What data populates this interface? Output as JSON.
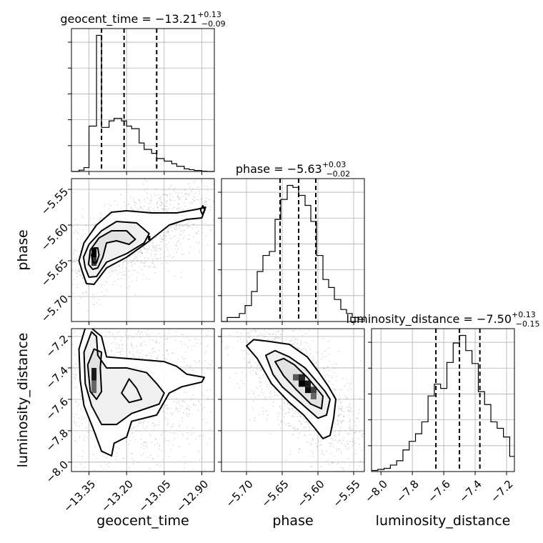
{
  "chart_data": {
    "type": "corner",
    "parameters": [
      {
        "name": "geocent_time",
        "axis_label": "geocent_time",
        "range": [
          -13.42,
          -12.85
        ],
        "ticks": [
          -13.35,
          -13.2,
          -13.05,
          -12.9
        ],
        "tick_labels": [
          "−13.35",
          "−13.20",
          "−13.05",
          "−12.90"
        ],
        "title": {
          "prefix": "geocent_time = ",
          "median": "−13.21",
          "upper": "+0.13",
          "lower": "−0.09"
        },
        "quantiles": [
          -13.3,
          -13.21,
          -13.08
        ],
        "hist_bins": [
          -13.42,
          -13.39,
          -13.37,
          -13.35,
          -13.32,
          -13.3,
          -13.27,
          -13.25,
          -13.22,
          -13.2,
          -13.18,
          -13.15,
          -13.13,
          -13.1,
          -13.08,
          -13.05,
          -13.02,
          -13.0,
          -12.97,
          -12.95,
          -12.93,
          -12.9,
          -12.88,
          -12.85
        ],
        "hist_counts": [
          0,
          0.5,
          1.5,
          17.5,
          52.5,
          17,
          19.5,
          20.5,
          19.5,
          17.5,
          16.5,
          11,
          8.5,
          7,
          5,
          4,
          3,
          2,
          1,
          0.7,
          0.4,
          0.1,
          0
        ]
      },
      {
        "name": "phase",
        "axis_label": "phase",
        "range": [
          -5.735,
          -5.535
        ],
        "ticks": [
          -5.7,
          -5.65,
          -5.6,
          -5.55
        ],
        "tick_labels": [
          "−5.70",
          "−5.65",
          "−5.60",
          "−5.55"
        ],
        "title": {
          "prefix": "phase = ",
          "median": "−5.63",
          "upper": "+0.03",
          "lower": "−0.02"
        },
        "quantiles": [
          -5.653,
          -5.627,
          -5.603
        ],
        "hist_bins": [
          -5.735,
          -5.727,
          -5.718,
          -5.71,
          -5.702,
          -5.693,
          -5.685,
          -5.677,
          -5.668,
          -5.66,
          -5.652,
          -5.643,
          -5.635,
          -5.627,
          -5.618,
          -5.61,
          -5.602,
          -5.593,
          -5.585,
          -5.577,
          -5.568,
          -5.56,
          -5.552,
          -5.543,
          -5.535
        ],
        "hist_counts": [
          0,
          1,
          1,
          2,
          4,
          7.5,
          12.5,
          16.5,
          17.5,
          25.5,
          30.5,
          34,
          33.5,
          31.5,
          29,
          25,
          16.5,
          10.5,
          8.5,
          5.5,
          3,
          2,
          1,
          0.5
        ]
      },
      {
        "name": "luminosity_distance",
        "axis_label": "luminosity_distance",
        "range": [
          -8.06,
          -7.15
        ],
        "ticks": [
          -8.0,
          -7.8,
          -7.6,
          -7.4,
          -7.2
        ],
        "tick_labels": [
          "−8.0",
          "−7.8",
          "−7.6",
          "−7.4",
          "−7.2"
        ],
        "title": {
          "prefix": "luminosity_distance = ",
          "median": "−7.50",
          "upper": "+0.13",
          "lower": "−0.15"
        },
        "quantiles": [
          -7.65,
          -7.5,
          -7.37
        ],
        "hist_bins": [
          -8.06,
          -8.02,
          -7.98,
          -7.94,
          -7.9,
          -7.86,
          -7.82,
          -7.78,
          -7.74,
          -7.7,
          -7.66,
          -7.62,
          -7.58,
          -7.54,
          -7.5,
          -7.46,
          -7.42,
          -7.38,
          -7.34,
          -7.3,
          -7.26,
          -7.22,
          -7.18,
          -7.15
        ],
        "hist_counts": [
          0.5,
          1,
          1.5,
          3,
          5,
          10,
          14,
          17.5,
          23,
          35,
          40.5,
          38.5,
          50.5,
          59.5,
          63,
          56,
          50,
          37,
          31,
          23,
          20,
          16,
          7
        ]
      }
    ],
    "contours": [
      {
        "x": "geocent_time",
        "y": "phase",
        "levels": [
          [
            [
              -13.375,
              -5.667
            ],
            [
              -13.36,
              -5.682
            ],
            [
              -13.33,
              -5.683
            ],
            [
              -13.28,
              -5.66
            ],
            [
              -13.2,
              -5.645
            ],
            [
              -13.12,
              -5.625
            ],
            [
              -13.03,
              -5.6
            ],
            [
              -12.96,
              -5.592
            ],
            [
              -12.9,
              -5.59
            ],
            [
              -12.885,
              -5.575
            ],
            [
              -12.92,
              -5.578
            ],
            [
              -13.0,
              -5.583
            ],
            [
              -13.1,
              -5.583
            ],
            [
              -13.2,
              -5.58
            ],
            [
              -13.26,
              -5.582
            ],
            [
              -13.32,
              -5.6
            ],
            [
              -13.37,
              -5.625
            ],
            [
              -13.39,
              -5.65
            ]
          ],
          [
            [
              -13.365,
              -5.66
            ],
            [
              -13.35,
              -5.673
            ],
            [
              -13.32,
              -5.672
            ],
            [
              -13.28,
              -5.652
            ],
            [
              -13.2,
              -5.64
            ],
            [
              -13.13,
              -5.625
            ],
            [
              -13.11,
              -5.612
            ],
            [
              -13.16,
              -5.597
            ],
            [
              -13.24,
              -5.595
            ],
            [
              -13.3,
              -5.608
            ],
            [
              -13.35,
              -5.627
            ],
            [
              -13.372,
              -5.645
            ]
          ],
          [
            [
              -13.352,
              -5.655
            ],
            [
              -13.335,
              -5.662
            ],
            [
              -13.315,
              -5.66
            ],
            [
              -13.295,
              -5.645
            ],
            [
              -13.28,
              -5.625
            ],
            [
              -13.24,
              -5.622
            ],
            [
              -13.19,
              -5.627
            ],
            [
              -13.165,
              -5.62
            ],
            [
              -13.2,
              -5.608
            ],
            [
              -13.26,
              -5.608
            ],
            [
              -13.31,
              -5.618
            ],
            [
              -13.345,
              -5.635
            ]
          ],
          [
            [
              -13.335,
              -5.652
            ],
            [
              -13.32,
              -5.653
            ],
            [
              -13.31,
              -5.642
            ],
            [
              -13.315,
              -5.632
            ],
            [
              -13.33,
              -5.632
            ],
            [
              -13.34,
              -5.642
            ]
          ],
          [
            [
              -13.112,
              -5.62
            ],
            [
              -13.108,
              -5.62
            ],
            [
              -13.108,
              -5.616
            ],
            [
              -13.112,
              -5.616
            ]
          ],
          [
            [
              -12.905,
              -5.579
            ],
            [
              -12.898,
              -5.585
            ],
            [
              -12.888,
              -5.579
            ],
            [
              -12.896,
              -5.573
            ]
          ]
        ],
        "density_cells": [
          {
            "x": [
              -13.34,
              -13.32
            ],
            "y": [
              -5.645,
              -5.632
            ],
            "weight": 1.0
          },
          {
            "x": [
              -13.34,
              -13.32
            ],
            "y": [
              -5.657,
              -5.645
            ],
            "weight": 0.8
          }
        ]
      },
      {
        "x": "geocent_time",
        "y": "luminosity_distance",
        "levels": [
          [
            [
              -13.36,
              -7.12
            ],
            [
              -13.39,
              -7.28
            ],
            [
              -13.385,
              -7.48
            ],
            [
              -13.37,
              -7.64
            ],
            [
              -13.33,
              -7.8
            ],
            [
              -13.3,
              -7.93
            ],
            [
              -13.26,
              -7.96
            ],
            [
              -13.25,
              -7.88
            ],
            [
              -13.2,
              -7.84
            ],
            [
              -13.18,
              -7.74
            ],
            [
              -13.08,
              -7.7
            ],
            [
              -13.03,
              -7.56
            ],
            [
              -12.98,
              -7.52
            ],
            [
              -12.9,
              -7.49
            ],
            [
              -12.89,
              -7.46
            ],
            [
              -12.96,
              -7.44
            ],
            [
              -13.0,
              -7.39
            ],
            [
              -13.05,
              -7.36
            ],
            [
              -13.2,
              -7.34
            ],
            [
              -13.28,
              -7.33
            ],
            [
              -13.3,
              -7.2
            ]
          ],
          [
            [
              -13.34,
              -7.17
            ],
            [
              -13.37,
              -7.3
            ],
            [
              -13.365,
              -7.5
            ],
            [
              -13.34,
              -7.64
            ],
            [
              -13.3,
              -7.76
            ],
            [
              -13.24,
              -7.76
            ],
            [
              -13.18,
              -7.69
            ],
            [
              -13.07,
              -7.63
            ],
            [
              -13.05,
              -7.56
            ],
            [
              -13.08,
              -7.5
            ],
            [
              -13.12,
              -7.43
            ],
            [
              -13.2,
              -7.4
            ],
            [
              -13.28,
              -7.4
            ],
            [
              -13.315,
              -7.32
            ],
            [
              -13.32,
              -7.2
            ]
          ],
          [
            [
              -13.33,
              -7.28
            ],
            [
              -13.355,
              -7.38
            ],
            [
              -13.345,
              -7.55
            ],
            [
              -13.32,
              -7.6
            ],
            [
              -13.3,
              -7.55
            ],
            [
              -13.305,
              -7.4
            ],
            [
              -13.3,
              -7.3
            ]
          ],
          [
            [
              -13.19,
              -7.47
            ],
            [
              -13.22,
              -7.56
            ],
            [
              -13.19,
              -7.62
            ],
            [
              -13.14,
              -7.6
            ],
            [
              -13.16,
              -7.53
            ]
          ]
        ],
        "density_cells": [
          {
            "x": [
              -13.34,
              -13.32
            ],
            "y": [
              -7.48,
              -7.4
            ],
            "weight": 0.9
          },
          {
            "x": [
              -13.34,
              -13.32
            ],
            "y": [
              -7.56,
              -7.48
            ],
            "weight": 0.6
          }
        ]
      },
      {
        "x": "phase",
        "y": "luminosity_distance",
        "levels": [
          [
            [
              -5.7,
              -7.26
            ],
            [
              -5.685,
              -7.34
            ],
            [
              -5.665,
              -7.5
            ],
            [
              -5.64,
              -7.62
            ],
            [
              -5.62,
              -7.7
            ],
            [
              -5.605,
              -7.78
            ],
            [
              -5.593,
              -7.85
            ],
            [
              -5.583,
              -7.83
            ],
            [
              -5.578,
              -7.72
            ],
            [
              -5.575,
              -7.6
            ],
            [
              -5.585,
              -7.52
            ],
            [
              -5.6,
              -7.42
            ],
            [
              -5.615,
              -7.33
            ],
            [
              -5.64,
              -7.25
            ],
            [
              -5.67,
              -7.23
            ],
            [
              -5.69,
              -7.22
            ]
          ],
          [
            [
              -5.673,
              -7.32
            ],
            [
              -5.663,
              -7.44
            ],
            [
              -5.65,
              -7.52
            ],
            [
              -5.625,
              -7.62
            ],
            [
              -5.6,
              -7.72
            ],
            [
              -5.588,
              -7.7
            ],
            [
              -5.583,
              -7.6
            ],
            [
              -5.59,
              -7.55
            ],
            [
              -5.603,
              -7.48
            ],
            [
              -5.618,
              -7.4
            ],
            [
              -5.64,
              -7.33
            ],
            [
              -5.66,
              -7.29
            ]
          ],
          [
            [
              -5.66,
              -7.36
            ],
            [
              -5.648,
              -7.45
            ],
            [
              -5.63,
              -7.54
            ],
            [
              -5.61,
              -7.63
            ],
            [
              -5.595,
              -7.66
            ],
            [
              -5.593,
              -7.58
            ],
            [
              -5.602,
              -7.53
            ],
            [
              -5.615,
              -7.46
            ],
            [
              -5.633,
              -7.38
            ],
            [
              -5.648,
              -7.34
            ]
          ]
        ],
        "density_cells": [
          {
            "x": [
              -5.635,
              -5.627
            ],
            "y": [
              -7.48,
              -7.44
            ],
            "weight": 0.65
          },
          {
            "x": [
              -5.627,
              -5.618
            ],
            "y": [
              -7.48,
              -7.44
            ],
            "weight": 0.85
          },
          {
            "x": [
              -5.627,
              -5.618
            ],
            "y": [
              -7.52,
              -7.48
            ],
            "weight": 1.0
          },
          {
            "x": [
              -5.618,
              -5.61
            ],
            "y": [
              -7.52,
              -7.48
            ],
            "weight": 0.9
          },
          {
            "x": [
              -5.618,
              -5.61
            ],
            "y": [
              -7.56,
              -7.52
            ],
            "weight": 0.95
          },
          {
            "x": [
              -5.61,
              -5.602
            ],
            "y": [
              -7.56,
              -7.52
            ],
            "weight": 0.75
          },
          {
            "x": [
              -5.61,
              -5.602
            ],
            "y": [
              -7.6,
              -7.56
            ],
            "weight": 0.6
          }
        ]
      }
    ],
    "grid": true,
    "colors": {
      "line": "#000000",
      "grid": "#b0b0b0",
      "scatter": "#9a9a9a"
    }
  }
}
